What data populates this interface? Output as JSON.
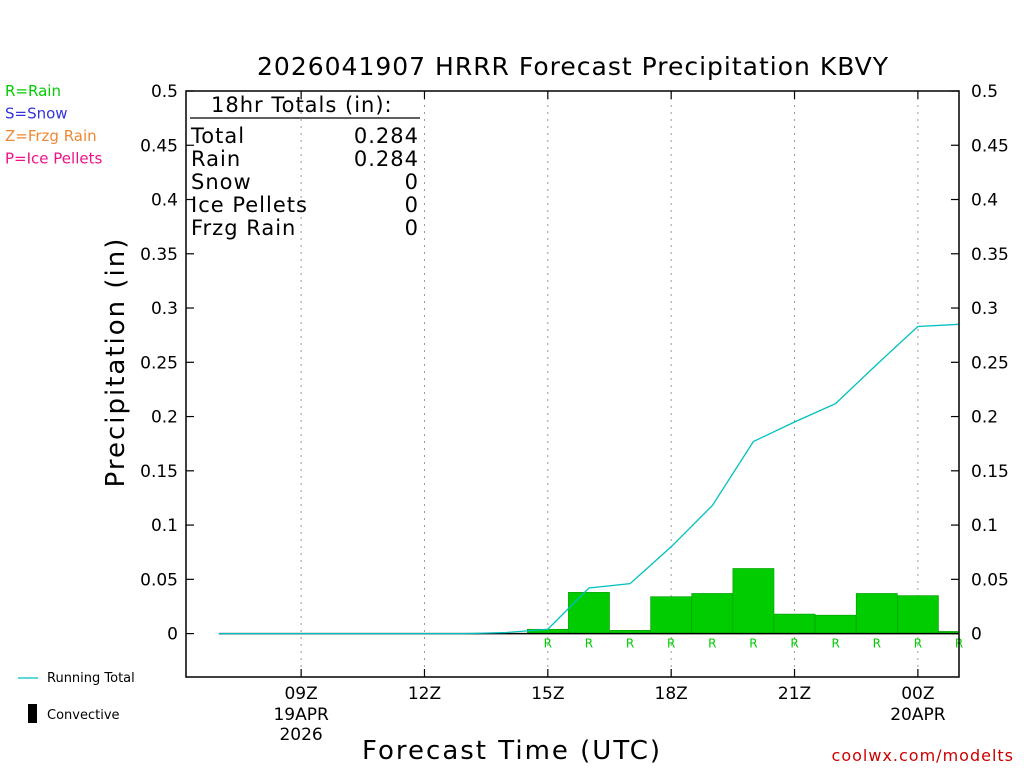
{
  "chart_data": {
    "type": "bar",
    "title": "2026041907 HRRR Forecast Precipitation KBVY",
    "ylabel": "Precipitation (in)",
    "xlabel": "Forecast Time (UTC)",
    "ylim": [
      -0.04,
      0.5
    ],
    "yticks": [
      "0",
      "0.05",
      "0.1",
      "0.15",
      "0.2",
      "0.25",
      "0.3",
      "0.35",
      "0.4",
      "0.45",
      "0.5"
    ],
    "xticks": [
      {
        "hour": 2,
        "label": "09Z",
        "sub1": "19APR",
        "sub2": "2026"
      },
      {
        "hour": 5,
        "label": "12Z",
        "sub1": "",
        "sub2": ""
      },
      {
        "hour": 8,
        "label": "15Z",
        "sub1": "",
        "sub2": ""
      },
      {
        "hour": 11,
        "label": "18Z",
        "sub1": "",
        "sub2": ""
      },
      {
        "hour": 14,
        "label": "21Z",
        "sub1": "",
        "sub2": ""
      },
      {
        "hour": 17,
        "label": "00Z",
        "sub1": "20APR",
        "sub2": ""
      }
    ],
    "xlim": [
      -0.8,
      18
    ],
    "hours": [
      0,
      1,
      2,
      3,
      4,
      5,
      6,
      7,
      8,
      9,
      10,
      11,
      12,
      13,
      14,
      15,
      16,
      17,
      18
    ],
    "hourly_precip": [
      0,
      0,
      0,
      0,
      0,
      0,
      0,
      0,
      0.004,
      0.038,
      0.003,
      0.034,
      0.037,
      0.06,
      0.018,
      0.017,
      0.037,
      0.035,
      0.002
    ],
    "precip_type": [
      "",
      "",
      "",
      "",
      "",
      "",
      "",
      "",
      "R",
      "R",
      "R",
      "R",
      "R",
      "R",
      "R",
      "R",
      "R",
      "R",
      "R"
    ],
    "running_total": [
      0,
      0,
      0,
      0,
      0,
      0,
      0,
      0.001,
      0.004,
      0.042,
      0.046,
      0.08,
      0.118,
      0.177,
      0.195,
      0.212,
      0.248,
      0.283,
      0.285
    ],
    "grid": "vertical dotted",
    "colors": {
      "rain": "#00cc00",
      "running_total": "#00c0c0",
      "convective": "#000000"
    }
  },
  "legend_top": [
    {
      "text": "R=Rain",
      "color": "#00cc00"
    },
    {
      "text": "S=Snow",
      "color": "#3333dd"
    },
    {
      "text": "Z=Frzg Rain",
      "color": "#ee8833"
    },
    {
      "text": "P=Ice Pellets",
      "color": "#ee1188"
    }
  ],
  "legend_bottom": {
    "running_total": "Running Total",
    "convective": "Convective"
  },
  "totals": {
    "header": "18hr Totals (in):",
    "rows": [
      {
        "label": "Total",
        "value": "0.284"
      },
      {
        "label": "Rain",
        "value": "0.284"
      },
      {
        "label": "Snow",
        "value": "0"
      },
      {
        "label": "Ice Pellets",
        "value": "0"
      },
      {
        "label": "Frzg Rain",
        "value": "0"
      }
    ]
  },
  "credit": "coolwx.com/modelts"
}
